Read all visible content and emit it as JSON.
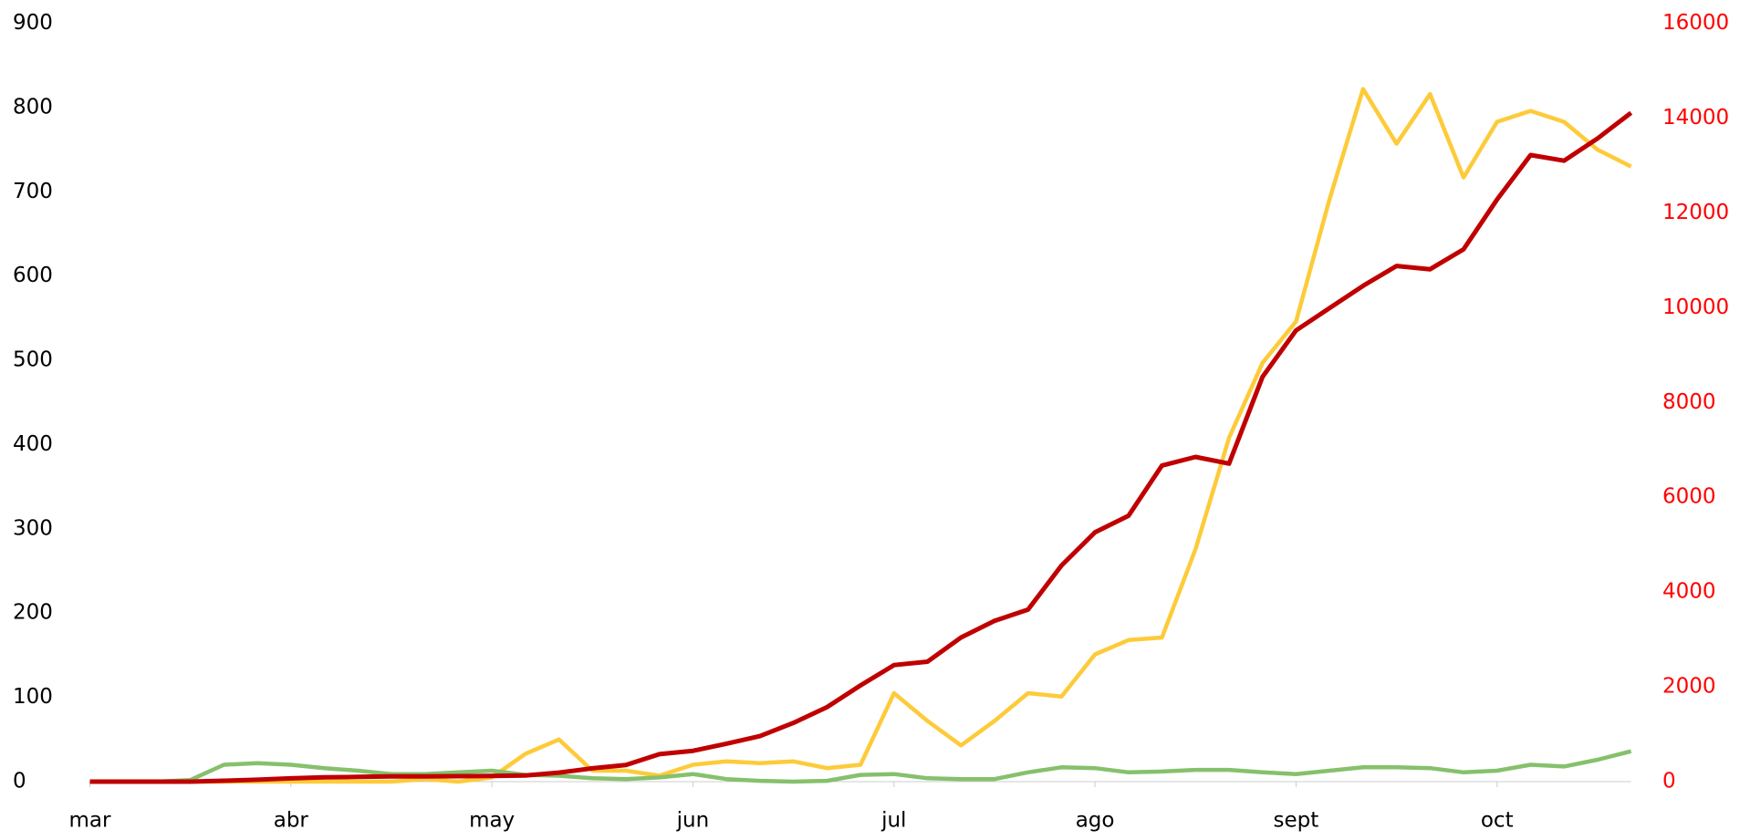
{
  "chart_data": {
    "type": "line",
    "categories": [
      "mar",
      null,
      null,
      null,
      null,
      null,
      "abr",
      null,
      null,
      null,
      null,
      null,
      "may",
      null,
      null,
      null,
      null,
      null,
      "jun",
      null,
      null,
      null,
      null,
      null,
      "jul",
      null,
      null,
      null,
      null,
      null,
      "ago",
      null,
      null,
      null,
      null,
      null,
      "sept",
      null,
      null,
      null,
      null,
      null,
      "oct",
      null,
      null,
      null,
      null
    ],
    "series": [
      {
        "name": "yellow",
        "color": "#fdcb3a",
        "axis": "y",
        "values": [
          0,
          0,
          0,
          0,
          0,
          0,
          0,
          0,
          0,
          0,
          3,
          0,
          5,
          33,
          50,
          13,
          13,
          7,
          20,
          24,
          22,
          24,
          16,
          20,
          105,
          72,
          43,
          72,
          105,
          101,
          151,
          168,
          171,
          276,
          408,
          497,
          546,
          691,
          822,
          757,
          816,
          717,
          783,
          796,
          783,
          750,
          730
        ]
      },
      {
        "name": "green",
        "color": "#86c06c",
        "axis": "y",
        "values": [
          0,
          0,
          0,
          2,
          20,
          22,
          20,
          16,
          13,
          9,
          9,
          11,
          13,
          8,
          7,
          4,
          3,
          5,
          9,
          3,
          1,
          0,
          1,
          8,
          9,
          4,
          3,
          3,
          11,
          17,
          16,
          11,
          12,
          14,
          14,
          11,
          9,
          13,
          17,
          17,
          16,
          11,
          13,
          20,
          18,
          26,
          36
        ]
      },
      {
        "name": "red",
        "color": "#c00000",
        "axis": "y2",
        "values": [
          0,
          0,
          0,
          0,
          20,
          40,
          70,
          90,
          100,
          110,
          110,
          115,
          120,
          130,
          190,
          280,
          350,
          580,
          650,
          800,
          960,
          1240,
          1570,
          2030,
          2460,
          2530,
          3040,
          3390,
          3630,
          4560,
          5260,
          5610,
          6670,
          6850,
          6710,
          8540,
          9520,
          9990,
          10460,
          10880,
          10810,
          11230,
          12280,
          13220,
          13100,
          13570,
          14110
        ]
      }
    ],
    "ylim": [
      0,
      900
    ],
    "yticks": [
      0,
      100,
      200,
      300,
      400,
      500,
      600,
      700,
      800,
      900
    ],
    "y2lim": [
      0,
      16000
    ],
    "y2ticks": [
      0,
      2000,
      4000,
      6000,
      8000,
      10000,
      12000,
      14000,
      16000
    ],
    "y2color": "#ff0000"
  }
}
